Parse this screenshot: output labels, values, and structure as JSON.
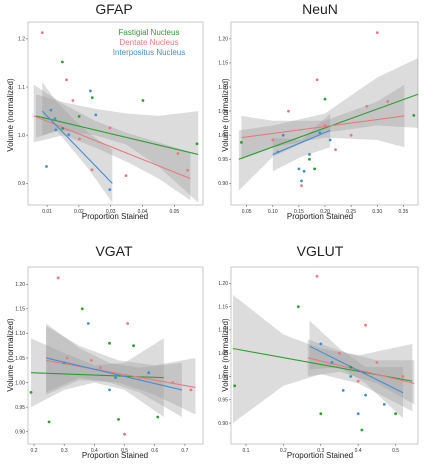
{
  "legend": [
    {
      "name": "Fastigial Nucleus",
      "color": "#2ca02c"
    },
    {
      "name": "Dentate Nucleus",
      "color": "#e87a80"
    },
    {
      "name": "Interpositus Nucleus",
      "color": "#3f8fd8"
    }
  ],
  "chart_data": [
    {
      "type": "scatter",
      "title": "GFAP",
      "xlabel": "Proportion Stained",
      "ylabel": "Volume (normalized)",
      "xlim": [
        0.004,
        0.059
      ],
      "ylim": [
        0.855,
        1.235
      ],
      "x_ticks": [
        0.01,
        0.02,
        0.03,
        0.04,
        0.05
      ],
      "x_tick_labels": [
        "0.01",
        "0.02",
        "0.03",
        "0.04",
        "0.05"
      ],
      "y_ticks": [
        0.9,
        1.0,
        1.1,
        1.2
      ],
      "y_tick_labels": [
        "0.9",
        "1.0",
        "1.1",
        "1.2"
      ],
      "legend_position": "top-right",
      "series": [
        {
          "name": "Fastigial Nucleus",
          "color": "#2ca02c",
          "points": [
            [
              0.0148,
              1.152
            ],
            [
              0.0201,
              1.039
            ],
            [
              0.0242,
              1.078
            ],
            [
              0.0401,
              1.072
            ],
            [
              0.0571,
              0.982
            ],
            [
              0.0149,
              1.014
            ]
          ],
          "fit": [
            [
              0.0065,
              1.04
            ],
            [
              0.0575,
              0.96
            ]
          ],
          "band": [
            [
              0.0065,
              0.995,
              1.085
            ],
            [
              0.014,
              1.01,
              1.07
            ],
            [
              0.025,
              1.0,
              1.055
            ],
            [
              0.035,
              0.98,
              1.045
            ],
            [
              0.045,
              0.935,
              1.04
            ],
            [
              0.0575,
              0.86,
              1.05
            ]
          ]
        },
        {
          "name": "Dentate Nucleus",
          "color": "#e87a80",
          "points": [
            [
              0.0085,
              1.213
            ],
            [
              0.0161,
              1.115
            ],
            [
              0.0181,
              1.072
            ],
            [
              0.0202,
              0.992
            ],
            [
              0.0241,
              0.928
            ],
            [
              0.0298,
              1.015
            ],
            [
              0.0348,
              0.916
            ],
            [
              0.0511,
              0.962
            ],
            [
              0.0542,
              0.927
            ]
          ],
          "fit": [
            [
              0.0058,
              1.04
            ],
            [
              0.055,
              0.91
            ]
          ],
          "band": [
            [
              0.0058,
              0.985,
              1.105
            ],
            [
              0.015,
              1.0,
              1.065
            ],
            [
              0.025,
              0.975,
              1.03
            ],
            [
              0.035,
              0.945,
              1.005
            ],
            [
              0.045,
              0.91,
              0.985
            ],
            [
              0.055,
              0.865,
              0.965
            ]
          ]
        },
        {
          "name": "Interpositus Nucleus",
          "color": "#3f8fd8",
          "points": [
            [
              0.0098,
              0.935
            ],
            [
              0.0112,
              1.052
            ],
            [
              0.0125,
              1.034
            ],
            [
              0.0168,
              1.001
            ],
            [
              0.0236,
              1.092
            ],
            [
              0.0253,
              1.042
            ],
            [
              0.0297,
              0.887
            ],
            [
              0.0127,
              1.011
            ]
          ],
          "fit": [
            [
              0.0085,
              1.05
            ],
            [
              0.0305,
              0.9
            ]
          ],
          "band": [
            [
              0.0085,
              1.0,
              1.11
            ],
            [
              0.013,
              1.01,
              1.07
            ],
            [
              0.018,
              0.97,
              1.035
            ],
            [
              0.023,
              0.93,
              1.005
            ],
            [
              0.0305,
              0.86,
              0.97
            ]
          ]
        }
      ]
    },
    {
      "type": "scatter",
      "title": "NeuN",
      "xlabel": "Proportion Stained",
      "ylabel": "Volume (normalized)",
      "xlim": [
        0.02,
        0.378
      ],
      "ylim": [
        0.855,
        1.235
      ],
      "x_ticks": [
        0.05,
        0.1,
        0.15,
        0.2,
        0.25,
        0.3,
        0.35
      ],
      "x_tick_labels": [
        "0.05",
        "0.10",
        "0.15",
        "0.20",
        "0.25",
        "0.30",
        "0.35"
      ],
      "y_ticks": [
        0.9,
        0.95,
        1.0,
        1.05,
        1.1,
        1.15,
        1.2
      ],
      "y_tick_labels": [
        "0.90",
        "0.95",
        "1.00",
        "1.05",
        "1.10",
        "1.15",
        "1.20"
      ],
      "series": [
        {
          "name": "Fastigial Nucleus",
          "color": "#2ca02c",
          "points": [
            [
              0.2,
              1.075
            ],
            [
              0.37,
              1.041
            ],
            [
              0.17,
              0.95
            ],
            [
              0.18,
              0.93
            ],
            [
              0.04,
              0.985
            ]
          ],
          "fit": [
            [
              0.035,
              0.95
            ],
            [
              0.378,
              1.085
            ]
          ],
          "band": [
            [
              0.035,
              0.885,
              1.01
            ],
            [
              0.1,
              0.955,
              1.02
            ],
            [
              0.2,
              1.005,
              1.045
            ],
            [
              0.3,
              1.02,
              1.12
            ],
            [
              0.378,
              1.015,
              1.16
            ]
          ]
        },
        {
          "name": "Dentate Nucleus",
          "color": "#e87a80",
          "points": [
            [
              0.3,
              1.213
            ],
            [
              0.155,
              0.895
            ],
            [
              0.185,
              1.115
            ],
            [
              0.1,
              0.99
            ],
            [
              0.13,
              1.05
            ],
            [
              0.2,
              1.02
            ],
            [
              0.25,
              1.0
            ],
            [
              0.28,
              1.06
            ],
            [
              0.32,
              1.07
            ],
            [
              0.22,
              0.97
            ]
          ],
          "fit": [
            [
              0.04,
              0.995
            ],
            [
              0.352,
              1.04
            ]
          ],
          "band": [
            [
              0.04,
              0.95,
              1.04
            ],
            [
              0.1,
              0.975,
              1.03
            ],
            [
              0.2,
              0.995,
              1.03
            ],
            [
              0.3,
              0.99,
              1.07
            ],
            [
              0.352,
              0.975,
              1.105
            ]
          ]
        },
        {
          "name": "Interpositus Nucleus",
          "color": "#3f8fd8",
          "points": [
            [
              0.15,
              0.93
            ],
            [
              0.155,
              0.905
            ],
            [
              0.16,
              0.925
            ],
            [
              0.12,
              1.0
            ],
            [
              0.11,
              0.965
            ],
            [
              0.17,
              0.96
            ],
            [
              0.19,
              1.005
            ],
            [
              0.21,
              0.99
            ]
          ],
          "fit": [
            [
              0.1,
              0.96
            ],
            [
              0.21,
              1.01
            ]
          ],
          "band": [
            [
              0.1,
              0.925,
              0.995
            ],
            [
              0.155,
              0.955,
              0.99
            ],
            [
              0.21,
              0.975,
              1.045
            ]
          ]
        }
      ]
    },
    {
      "type": "scatter",
      "title": "VGAT",
      "xlabel": "Proportion Stained",
      "ylabel": "Volume (normalized)",
      "xlim": [
        0.18,
        0.76
      ],
      "ylim": [
        0.875,
        1.235
      ],
      "x_ticks": [
        0.2,
        0.3,
        0.4,
        0.5,
        0.6,
        0.7
      ],
      "x_tick_labels": [
        "0.2",
        "0.3",
        "0.4",
        "0.5",
        "0.6",
        "0.7"
      ],
      "y_ticks": [
        0.9,
        0.95,
        1.0,
        1.05,
        1.1,
        1.15,
        1.2
      ],
      "y_tick_labels": [
        "0.90",
        "0.95",
        "1.00",
        "1.05",
        "1.10",
        "1.15",
        "1.20"
      ],
      "series": [
        {
          "name": "Fastigial Nucleus",
          "color": "#2ca02c",
          "points": [
            [
              0.19,
              0.98
            ],
            [
              0.25,
              0.92
            ],
            [
              0.36,
              1.15
            ],
            [
              0.45,
              1.08
            ],
            [
              0.53,
              1.075
            ],
            [
              0.61,
              0.93
            ],
            [
              0.48,
              0.925
            ]
          ],
          "fit": [
            [
              0.19,
              1.02
            ],
            [
              0.63,
              1.01
            ]
          ],
          "band": [
            [
              0.19,
              0.95,
              1.09
            ],
            [
              0.3,
              0.985,
              1.06
            ],
            [
              0.4,
              1.0,
              1.035
            ],
            [
              0.5,
              0.985,
              1.04
            ],
            [
              0.63,
              0.93,
              1.09
            ]
          ]
        },
        {
          "name": "Dentate Nucleus",
          "color": "#e87a80",
          "points": [
            [
              0.28,
              1.213
            ],
            [
              0.5,
              0.895
            ],
            [
              0.51,
              1.12
            ],
            [
              0.31,
              1.05
            ],
            [
              0.42,
              1.03
            ],
            [
              0.55,
              1.01
            ],
            [
              0.66,
              1.0
            ],
            [
              0.72,
              0.985
            ],
            [
              0.39,
              1.045
            ]
          ],
          "fit": [
            [
              0.24,
              1.045
            ],
            [
              0.735,
              0.99
            ]
          ],
          "band": [
            [
              0.24,
              0.975,
              1.115
            ],
            [
              0.35,
              1.005,
              1.075
            ],
            [
              0.48,
              1.0,
              1.045
            ],
            [
              0.6,
              0.975,
              1.035
            ],
            [
              0.735,
              0.935,
              1.05
            ]
          ]
        },
        {
          "name": "Interpositus Nucleus",
          "color": "#3f8fd8",
          "points": [
            [
              0.38,
              1.12
            ],
            [
              0.47,
              1.01
            ],
            [
              0.58,
              1.02
            ],
            [
              0.3,
              1.04
            ],
            [
              0.45,
              0.985
            ]
          ],
          "fit": [
            [
              0.24,
              1.05
            ],
            [
              0.69,
              0.985
            ]
          ],
          "band": [
            [
              0.24,
              0.98,
              1.12
            ],
            [
              0.35,
              1.01,
              1.07
            ],
            [
              0.45,
              1.0,
              1.04
            ],
            [
              0.55,
              0.98,
              1.03
            ],
            [
              0.69,
              0.93,
              1.04
            ]
          ]
        }
      ]
    },
    {
      "type": "scatter",
      "title": "VGLUT",
      "xlabel": "Proportion Stained",
      "ylabel": "Volume (normalized)",
      "xlim": [
        0.06,
        0.56
      ],
      "ylim": [
        0.855,
        1.235
      ],
      "x_ticks": [
        0.1,
        0.2,
        0.3,
        0.4,
        0.5
      ],
      "x_tick_labels": [
        "0.1",
        "0.2",
        "0.3",
        "0.4",
        "0.5"
      ],
      "y_ticks": [
        0.9,
        0.95,
        1.0,
        1.05,
        1.1,
        1.15,
        1.2
      ],
      "y_tick_labels": [
        "0.90",
        "0.95",
        "1.00",
        "1.05",
        "1.10",
        "1.15",
        "1.20"
      ],
      "series": [
        {
          "name": "Fastigial Nucleus",
          "color": "#2ca02c",
          "points": [
            [
              0.07,
              0.98
            ],
            [
              0.24,
              1.15
            ],
            [
              0.3,
              0.92
            ],
            [
              0.41,
              0.885
            ],
            [
              0.5,
              0.92
            ],
            [
              0.38,
              1.02
            ]
          ],
          "fit": [
            [
              0.065,
              1.06
            ],
            [
              0.545,
              0.99
            ]
          ],
          "band": [
            [
              0.065,
              0.9,
              1.175
            ],
            [
              0.2,
              0.98,
              1.09
            ],
            [
              0.3,
              1.005,
              1.06
            ],
            [
              0.4,
              0.985,
              1.045
            ],
            [
              0.545,
              0.925,
              1.07
            ]
          ]
        },
        {
          "name": "Dentate Nucleus",
          "color": "#e87a80",
          "points": [
            [
              0.29,
              1.215
            ],
            [
              0.42,
              1.11
            ],
            [
              0.52,
              1.0
            ],
            [
              0.35,
              1.05
            ],
            [
              0.45,
              1.03
            ],
            [
              0.4,
              0.99
            ]
          ],
          "fit": [
            [
              0.265,
              1.04
            ],
            [
              0.55,
              0.985
            ]
          ],
          "band": [
            [
              0.265,
              1.0,
              1.08
            ],
            [
              0.35,
              1.01,
              1.055
            ],
            [
              0.45,
              0.985,
              1.035
            ],
            [
              0.55,
              0.94,
              1.035
            ]
          ]
        },
        {
          "name": "Interpositus Nucleus",
          "color": "#3f8fd8",
          "points": [
            [
              0.33,
              1.03
            ],
            [
              0.38,
              1.0
            ],
            [
              0.42,
              0.96
            ],
            [
              0.47,
              0.94
            ],
            [
              0.3,
              1.07
            ],
            [
              0.36,
              0.97
            ],
            [
              0.4,
              0.92
            ]
          ],
          "fit": [
            [
              0.27,
              1.065
            ],
            [
              0.52,
              0.965
            ]
          ],
          "band": [
            [
              0.27,
              1.015,
              1.12
            ],
            [
              0.35,
              1.02,
              1.06
            ],
            [
              0.42,
              0.985,
              1.02
            ],
            [
              0.52,
              0.91,
              1.02
            ]
          ]
        }
      ]
    }
  ]
}
